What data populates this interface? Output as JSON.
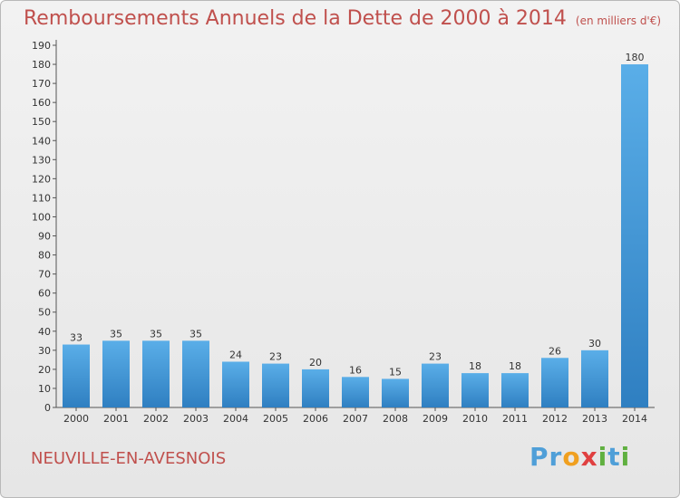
{
  "chart_data": {
    "type": "bar",
    "title": "Remboursements Annuels de la Dette de 2000 à 2014",
    "subtitle": "(en milliers d'€)",
    "categories": [
      "2000",
      "2001",
      "2002",
      "2003",
      "2004",
      "2005",
      "2006",
      "2007",
      "2008",
      "2009",
      "2010",
      "2011",
      "2012",
      "2013",
      "2014"
    ],
    "values": [
      33,
      35,
      35,
      35,
      24,
      23,
      20,
      16,
      15,
      23,
      18,
      18,
      26,
      30,
      180
    ],
    "ylim": [
      0,
      190
    ],
    "yticks": [
      0,
      10,
      20,
      30,
      40,
      50,
      60,
      70,
      80,
      90,
      100,
      110,
      120,
      130,
      140,
      150,
      160,
      170,
      180,
      190
    ],
    "grid": false,
    "bar_color_light": "#5aaee8",
    "bar_color_dark": "#2f7fc1",
    "xlabel": "",
    "ylabel": ""
  },
  "footer": {
    "commune": "NEUVILLE-EN-AVESNOIS",
    "logo_letters": [
      {
        "ch": "P",
        "color": "#4f9fd8"
      },
      {
        "ch": "r",
        "color": "#4f9fd8"
      },
      {
        "ch": "o",
        "color": "#f0a020"
      },
      {
        "ch": "x",
        "color": "#e04040"
      },
      {
        "ch": "i",
        "color": "#60b040"
      },
      {
        "ch": "t",
        "color": "#4f9fd8"
      },
      {
        "ch": "i",
        "color": "#60b040"
      }
    ]
  }
}
